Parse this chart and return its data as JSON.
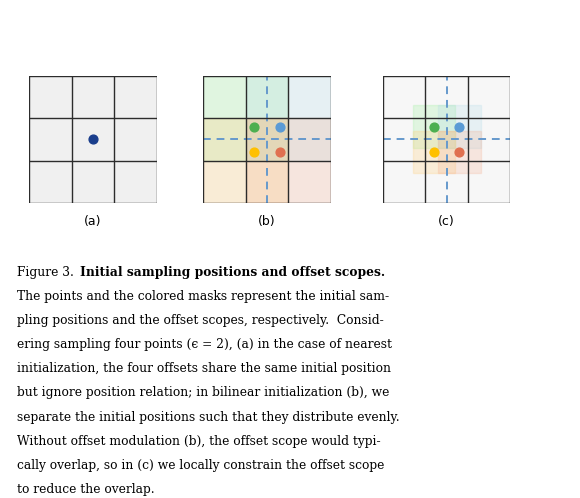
{
  "fig_width": 5.8,
  "fig_height": 4.98,
  "dpi": 100,
  "background": "#ffffff",
  "grid_color": "#2c2c2c",
  "grid_lw": 1.0,
  "panel_labels": [
    "(a)",
    "(b)",
    "(c)"
  ],
  "dot_a_color": "#1a3e8c",
  "dot_size": 40,
  "dot_green": "#4caf50",
  "dot_blue": "#5b9bd5",
  "dot_yellow": "#ffc000",
  "dot_orange": "#e07050",
  "dashed_line_color": "#6699cc",
  "dashed_lw": 1.4,
  "mask_green": "#90ee90",
  "mask_blue": "#add8e6",
  "mask_yellow": "#ffd080",
  "mask_red": "#f4a888",
  "mask_alpha_b": 0.22,
  "mask_alpha_c": 0.22
}
